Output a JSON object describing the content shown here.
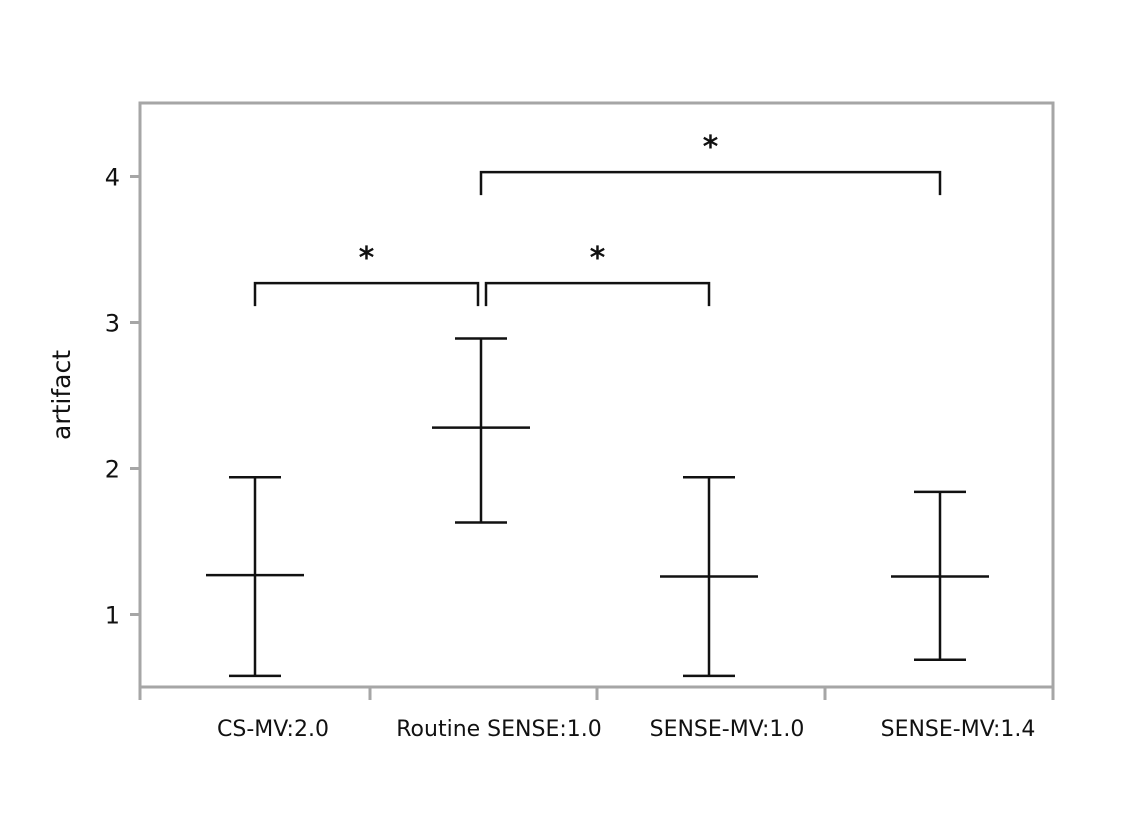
{
  "chart_data": {
    "type": "errorbar",
    "title": "",
    "xlabel": "",
    "ylabel": "artifact",
    "categories": [
      "CS-MV:2.0",
      "Routine SENSE:1.0",
      "SENSE-MV:1.0",
      "SENSE-MV:1.4"
    ],
    "series": [
      {
        "mean": [
          1.27,
          2.28,
          1.26,
          1.26
        ],
        "lower": [
          0.58,
          1.63,
          0.58,
          0.69
        ],
        "upper": [
          1.94,
          2.89,
          1.94,
          1.84
        ]
      }
    ],
    "ylim": [
      0.5,
      4.5
    ],
    "yticks": [
      1,
      2,
      3,
      4
    ],
    "grid": false,
    "legend": "none",
    "significance": [
      {
        "from": "CS-MV:2.0",
        "to": "Routine SENSE:1.0",
        "label": "*",
        "level": 3.27
      },
      {
        "from": "Routine SENSE:1.0",
        "to": "SENSE-MV:1.0",
        "label": "*",
        "level": 3.27
      },
      {
        "from": "Routine SENSE:1.0",
        "to": "SENSE-MV:1.4",
        "label": "*",
        "level": 4.03
      }
    ],
    "colors": {
      "frame": "#a6a6a6",
      "marks": "#111111"
    }
  }
}
